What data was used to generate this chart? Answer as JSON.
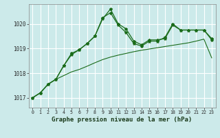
{
  "title": "Graphe pression niveau de la mer (hPa)",
  "bg_color": "#cceaea",
  "grid_color": "#ffffff",
  "line_color": "#1a6b1a",
  "xlim": [
    -0.5,
    23.5
  ],
  "ylim": [
    1016.6,
    1020.8
  ],
  "yticks": [
    1017,
    1018,
    1019,
    1020
  ],
  "xticks": [
    0,
    1,
    2,
    3,
    4,
    5,
    6,
    7,
    8,
    9,
    10,
    11,
    12,
    13,
    14,
    15,
    16,
    17,
    18,
    19,
    20,
    21,
    22,
    23
  ],
  "series1": [
    1017.0,
    1017.2,
    1017.55,
    1017.75,
    1018.3,
    1018.8,
    1018.95,
    1019.2,
    1019.5,
    1020.2,
    1020.6,
    1020.0,
    1019.8,
    1019.3,
    1019.15,
    1019.35,
    1019.35,
    1019.4,
    1019.95,
    1019.75,
    1019.75,
    1019.75,
    1019.75,
    1019.4
  ],
  "series2": [
    1017.0,
    1017.2,
    1017.55,
    1017.75,
    1018.3,
    1018.75,
    1018.95,
    1019.2,
    1019.5,
    1020.25,
    1020.45,
    1019.95,
    1019.65,
    1019.2,
    1019.1,
    1019.3,
    1019.3,
    1019.45,
    1020.0,
    1019.75,
    1019.75,
    1019.75,
    1019.75,
    1019.35
  ],
  "series3": [
    1017.0,
    1017.2,
    1017.55,
    1017.75,
    1017.9,
    1018.05,
    1018.15,
    1018.28,
    1018.42,
    1018.55,
    1018.65,
    1018.73,
    1018.8,
    1018.87,
    1018.93,
    1018.98,
    1019.03,
    1019.08,
    1019.13,
    1019.18,
    1019.23,
    1019.3,
    1019.38,
    1018.62
  ]
}
